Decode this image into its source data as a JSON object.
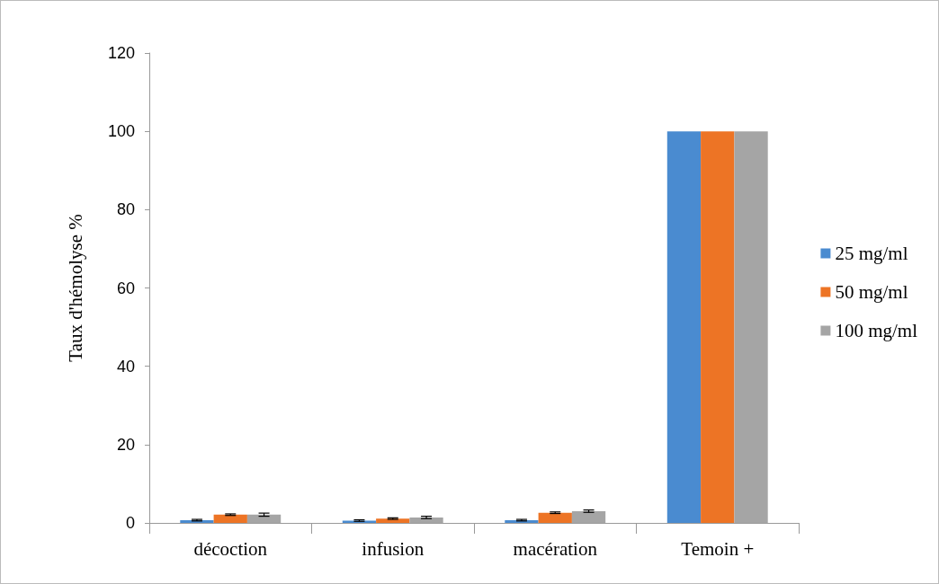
{
  "chart_data": {
    "type": "bar",
    "ylabel": "Taux d'hémolyse %",
    "categories": [
      "décoction",
      "infusion",
      "macération",
      "Temoin +"
    ],
    "series": [
      {
        "name": "25 mg/ml",
        "color": "#4a8bd0",
        "values": [
          0.7,
          0.6,
          0.7,
          100
        ],
        "errors": [
          0.2,
          0.2,
          0.2,
          null
        ]
      },
      {
        "name": "50 mg/ml",
        "color": "#ed7425",
        "values": [
          2.1,
          1.1,
          2.6,
          100
        ],
        "errors": [
          0.2,
          0.2,
          0.2,
          null
        ]
      },
      {
        "name": "100 mg/ml",
        "color": "#a5a5a5",
        "values": [
          2.1,
          1.4,
          3.0,
          100
        ],
        "errors": [
          0.4,
          0.3,
          0.3,
          null
        ]
      }
    ],
    "ylim": [
      0,
      120
    ],
    "yticks": [
      0,
      20,
      40,
      60,
      80,
      100,
      120
    ],
    "grid": false,
    "legend": "right"
  }
}
